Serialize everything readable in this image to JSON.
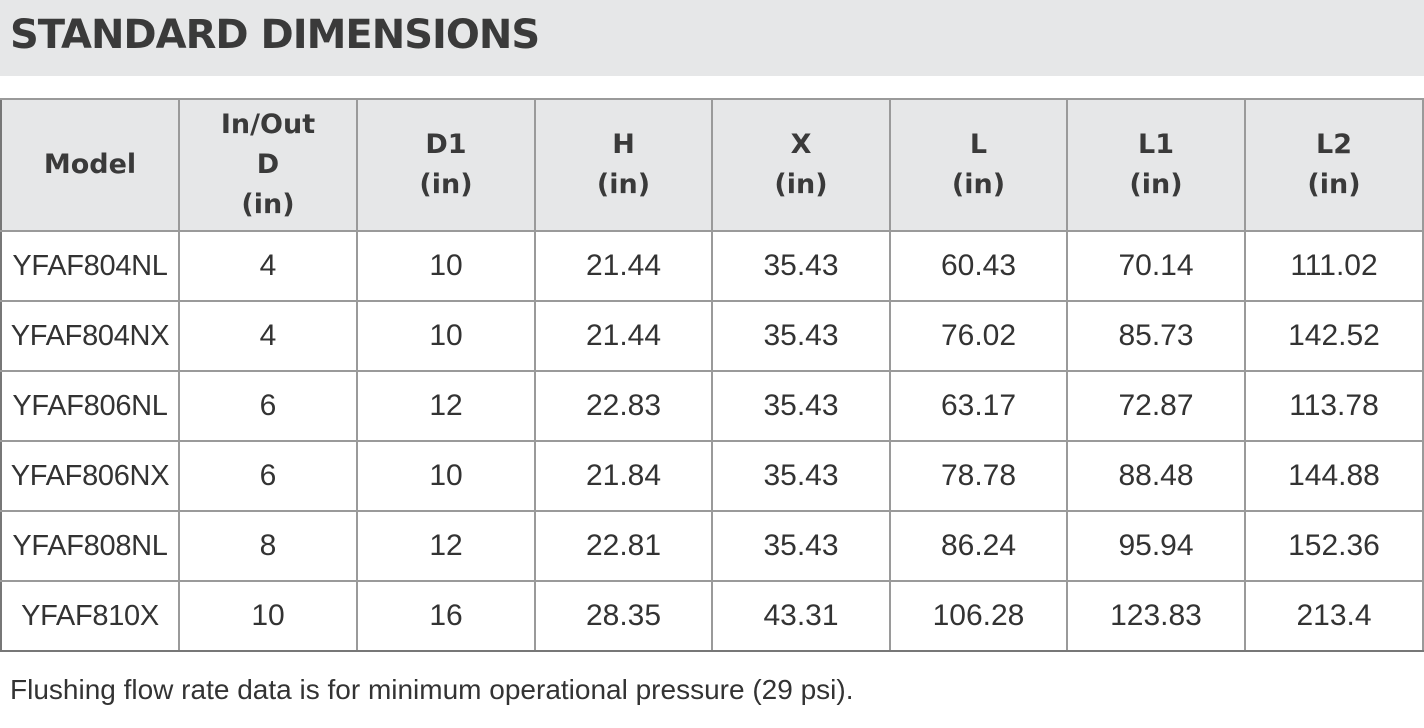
{
  "title": "STANDARD DIMENSIONS",
  "table": {
    "headers": [
      {
        "lines": [
          "Model"
        ]
      },
      {
        "lines": [
          "In/Out",
          "D",
          "(in)"
        ]
      },
      {
        "lines": [
          "D1",
          "(in)"
        ]
      },
      {
        "lines": [
          "H",
          "(in)"
        ]
      },
      {
        "lines": [
          "X",
          "(in)"
        ]
      },
      {
        "lines": [
          "L",
          "(in)"
        ]
      },
      {
        "lines": [
          "L1",
          "(in)"
        ]
      },
      {
        "lines": [
          "L2",
          "(in)"
        ]
      }
    ],
    "rows": [
      [
        "YFAF804NL",
        "4",
        "10",
        "21.44",
        "35.43",
        "60.43",
        "70.14",
        "111.02"
      ],
      [
        "YFAF804NX",
        "4",
        "10",
        "21.44",
        "35.43",
        "76.02",
        "85.73",
        "142.52"
      ],
      [
        "YFAF806NL",
        "6",
        "12",
        "22.83",
        "35.43",
        "63.17",
        "72.87",
        "113.78"
      ],
      [
        "YFAF806NX",
        "6",
        "10",
        "21.84",
        "35.43",
        "78.78",
        "88.48",
        "144.88"
      ],
      [
        "YFAF808NL",
        "8",
        "12",
        "22.81",
        "35.43",
        "86.24",
        "95.94",
        "152.36"
      ],
      [
        "YFAF810X",
        "10",
        "16",
        "28.35",
        "43.31",
        "106.28",
        "123.83",
        "213.4"
      ]
    ]
  },
  "footnote": "Flushing flow rate data is for minimum operational pressure (29 psi).",
  "colors": {
    "header_background": "#e6e7e8",
    "grid_lines": "#9a9a9a",
    "text": "#333333"
  }
}
